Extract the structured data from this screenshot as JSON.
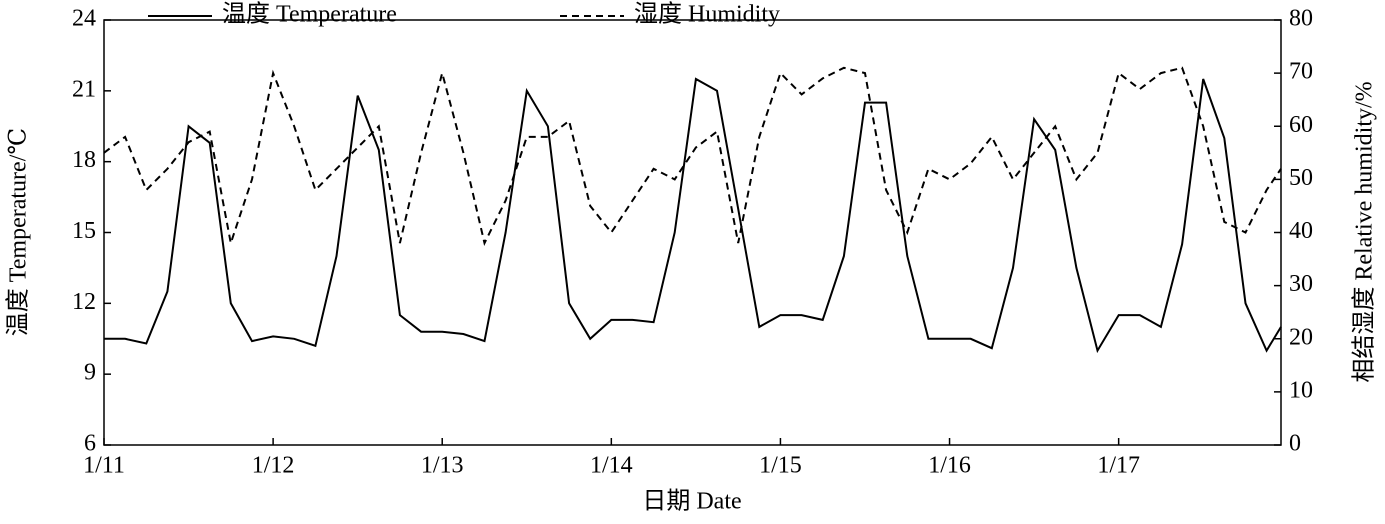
{
  "chart_data": {
    "type": "line",
    "x_label": "日期 Date",
    "y_label": "温度 Temperature/℃",
    "y2_label": "相结湿度 Relative humidity/%",
    "x": [
      0,
      0.125,
      0.25,
      0.375,
      0.5,
      0.625,
      0.75,
      0.875,
      1,
      1.125,
      1.25,
      1.375,
      1.5,
      1.625,
      1.75,
      1.875,
      2,
      2.125,
      2.25,
      2.375,
      2.5,
      2.625,
      2.75,
      2.875,
      3,
      3.125,
      3.25,
      3.375,
      3.5,
      3.625,
      3.75,
      3.875,
      4,
      4.125,
      4.25,
      4.375,
      4.5,
      4.625,
      4.75,
      4.875,
      5,
      5.125,
      5.25,
      5.375,
      5.5,
      5.625,
      5.75,
      5.875,
      6,
      6.125,
      6.25,
      6.375,
      6.5,
      6.625,
      6.75,
      6.875,
      6.96
    ],
    "xlim": [
      0,
      6.96
    ],
    "xticks": [
      {
        "value": 0,
        "label": "1/11"
      },
      {
        "value": 1,
        "label": "1/12"
      },
      {
        "value": 2,
        "label": "1/13"
      },
      {
        "value": 3,
        "label": "1/14"
      },
      {
        "value": 4,
        "label": "1/15"
      },
      {
        "value": 5,
        "label": "1/16"
      },
      {
        "value": 6,
        "label": "1/17"
      }
    ],
    "ylim": [
      6,
      24
    ],
    "yticks": [
      6,
      9,
      12,
      15,
      18,
      21,
      24
    ],
    "y2lim": [
      0,
      80
    ],
    "y2ticks": [
      0,
      10,
      20,
      30,
      40,
      50,
      60,
      70,
      80
    ],
    "series": [
      {
        "name": "温度 Temperature",
        "color": "#000000",
        "dash": "solid",
        "values": [
          10.5,
          10.5,
          10.3,
          12.5,
          19.5,
          18.8,
          12,
          10.4,
          10.6,
          10.5,
          10.2,
          14,
          20.8,
          18.5,
          11.5,
          10.8,
          10.8,
          10.7,
          10.4,
          15,
          21,
          19.5,
          12,
          10.5,
          11.3,
          11.3,
          11.2,
          15,
          21.5,
          21,
          16,
          11,
          11.5,
          11.5,
          11.3,
          14,
          20.5,
          20.5,
          14,
          10.5,
          10.5,
          10.5,
          10.1,
          13.5,
          19.8,
          18.5,
          13.5,
          10,
          11.5,
          11.5,
          11,
          14.5,
          21.5,
          19,
          12,
          10,
          11
        ]
      },
      {
        "name": "湿度 Humidity",
        "color": "#000000",
        "dash": "dashed",
        "axis": "y2",
        "values": [
          55,
          58,
          48,
          52,
          57,
          59,
          38,
          50,
          70,
          60,
          48,
          52,
          56,
          60,
          38,
          55,
          70,
          55,
          38,
          46,
          58,
          58,
          61,
          45,
          40,
          46,
          52,
          50,
          56,
          59,
          38,
          58,
          70,
          66,
          69,
          71,
          70,
          48,
          40,
          52,
          50,
          53,
          58,
          50,
          55,
          60,
          50,
          55,
          70,
          67,
          70,
          71,
          60,
          42,
          40,
          48,
          52
        ]
      }
    ]
  }
}
